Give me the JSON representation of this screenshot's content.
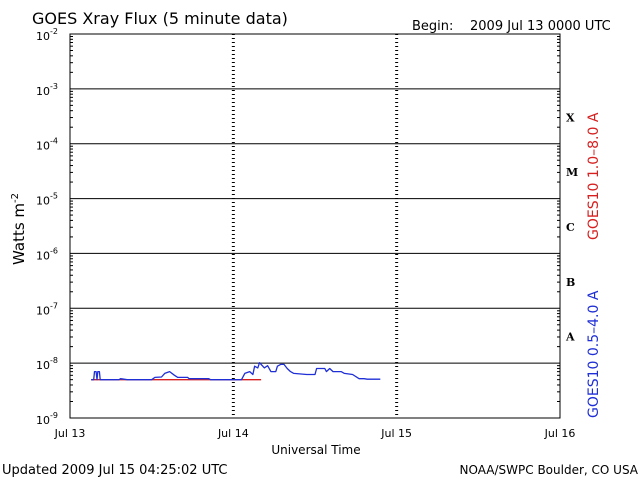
{
  "chart_data": {
    "type": "line",
    "title": "GOES Xray Flux (5 minute data)",
    "begin_label": "Begin:",
    "begin_value": "2009 Jul 13 0000 UTC",
    "xlabel": "Universal Time",
    "ylabel_main": "Watts m",
    "ylabel_sup": "-2",
    "x_ticks": [
      "Jul 13",
      "Jul 14",
      "Jul 15",
      "Jul 16"
    ],
    "y_scale": "log",
    "ylim": [
      1e-09,
      0.01
    ],
    "y_tick_exponents": [
      "-2",
      "-3",
      "-4",
      "-5",
      "-6",
      "-7",
      "-8",
      "-9"
    ],
    "y_tick_base": "10",
    "xlim_days": [
      0,
      3
    ],
    "flare_classes": [
      "X",
      "M",
      "C",
      "B",
      "A"
    ],
    "grid_horizontal": true,
    "series": [
      {
        "name": "GOES10 1.0–8.0 A",
        "color": "#d62020",
        "points": [
          [
            0.13,
            5e-09
          ],
          [
            1.17,
            5e-09
          ]
        ]
      },
      {
        "name": "GOES10 0.5–4.0 A",
        "color": "#1f2fd6",
        "points": [
          [
            0.13,
            5e-09
          ],
          [
            0.145,
            5e-09
          ],
          [
            0.15,
            7e-09
          ],
          [
            0.16,
            7e-09
          ],
          [
            0.165,
            5e-09
          ],
          [
            0.17,
            7e-09
          ],
          [
            0.18,
            7e-09
          ],
          [
            0.185,
            5e-09
          ],
          [
            0.3,
            5e-09
          ],
          [
            0.31,
            5.2e-09
          ],
          [
            0.35,
            5e-09
          ],
          [
            0.5,
            5e-09
          ],
          [
            0.52,
            5.5e-09
          ],
          [
            0.56,
            5.6e-09
          ],
          [
            0.58,
            6.5e-09
          ],
          [
            0.61,
            7e-09
          ],
          [
            0.64,
            6e-09
          ],
          [
            0.66,
            5.5e-09
          ],
          [
            0.72,
            5.5e-09
          ],
          [
            0.73,
            5.2e-09
          ],
          [
            0.78,
            5.2e-09
          ],
          [
            0.85,
            5.2e-09
          ],
          [
            0.86,
            5e-09
          ],
          [
            1.05,
            5e-09
          ],
          [
            1.07,
            6.5e-09
          ],
          [
            1.1,
            7e-09
          ],
          [
            1.12,
            6.2e-09
          ],
          [
            1.13,
            8.8e-09
          ],
          [
            1.15,
            8.2e-09
          ],
          [
            1.16,
            1.02e-08
          ],
          [
            1.19,
            8.2e-09
          ],
          [
            1.21,
            9e-09
          ],
          [
            1.23,
            7e-09
          ],
          [
            1.26,
            7e-09
          ],
          [
            1.27,
            8.8e-09
          ],
          [
            1.29,
            9.5e-09
          ],
          [
            1.31,
            9.5e-09
          ],
          [
            1.33,
            8e-09
          ],
          [
            1.35,
            7e-09
          ],
          [
            1.37,
            6.5e-09
          ],
          [
            1.45,
            6.2e-09
          ],
          [
            1.5,
            6.2e-09
          ],
          [
            1.51,
            8e-09
          ],
          [
            1.56,
            8e-09
          ],
          [
            1.57,
            7e-09
          ],
          [
            1.59,
            8e-09
          ],
          [
            1.61,
            7e-09
          ],
          [
            1.66,
            7e-09
          ],
          [
            1.68,
            6.5e-09
          ],
          [
            1.73,
            6.2e-09
          ],
          [
            1.77,
            5.2e-09
          ],
          [
            1.8,
            5.2e-09
          ],
          [
            1.82,
            5.1e-09
          ],
          [
            1.9,
            5.1e-09
          ]
        ]
      }
    ]
  },
  "footer": {
    "updated": "Updated 2009 Jul 15 04:25:02 UTC",
    "source": "NOAA/SWPC Boulder, CO USA"
  }
}
